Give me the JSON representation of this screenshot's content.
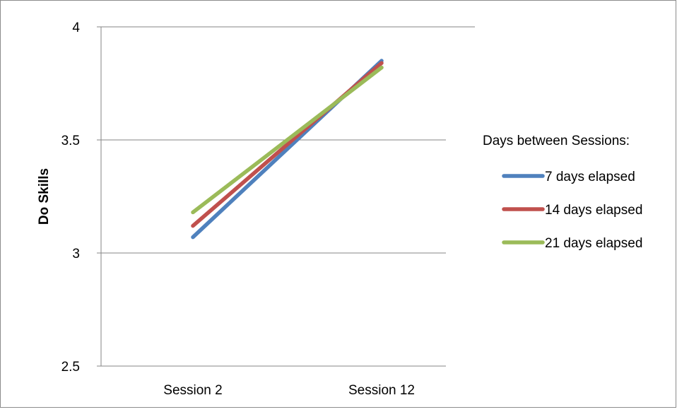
{
  "chart_data": {
    "type": "line",
    "title": "",
    "xlabel": "",
    "ylabel": "Do Skills",
    "categories": [
      "Session 2",
      "Session 12"
    ],
    "ylim": [
      2.5,
      4
    ],
    "yticks": [
      "2.5",
      "3",
      "3.5",
      "4"
    ],
    "grid": true,
    "legend_placement": "right",
    "legend_title": "Days between Sessions:",
    "series": [
      {
        "name": "7 days elapsed",
        "values": [
          3.07,
          3.85
        ],
        "color": "#4F81BD"
      },
      {
        "name": "14 days elapsed",
        "values": [
          3.12,
          3.84
        ],
        "color": "#C0504D"
      },
      {
        "name": "21 days elapsed",
        "values": [
          3.18,
          3.82
        ],
        "color": "#9BBB59"
      }
    ]
  }
}
